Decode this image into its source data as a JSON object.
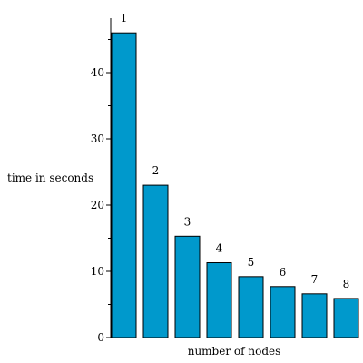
{
  "chart_data": {
    "type": "bar",
    "categories": [
      "1",
      "2",
      "3",
      "4",
      "5",
      "6",
      "7",
      "8"
    ],
    "values": [
      46,
      23,
      15.3,
      11.3,
      9.2,
      7.7,
      6.6,
      5.9
    ],
    "data_labels": [
      "1",
      "2",
      "3",
      "4",
      "5",
      "6",
      "7",
      "8"
    ],
    "title": "",
    "xlabel": "number of nodes",
    "ylabel": "time in seconds",
    "ylim": [
      0,
      48
    ],
    "yticks": [
      0,
      10,
      20,
      30,
      40
    ],
    "grid": false,
    "colors": {
      "bar": "#0099cc",
      "axis": "#000000"
    }
  }
}
